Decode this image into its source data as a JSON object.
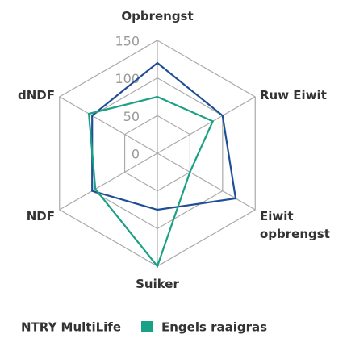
{
  "chart_data": {
    "type": "radar",
    "categories": [
      "Opbrengst",
      "Ruw Eiwit",
      "Eiwit opbrengst",
      "Suiker",
      "NDF",
      "dNDF"
    ],
    "series": [
      {
        "name": "NTRY MultiLife",
        "color": "#1f4e96",
        "values": [
          120,
          100,
          120,
          75,
          100,
          100
        ]
      },
      {
        "name": "Engels raaigras",
        "color": "#1aa085",
        "values": [
          75,
          85,
          50,
          150,
          95,
          105
        ]
      }
    ],
    "ylim": [
      0,
      150
    ],
    "yticks": [
      0,
      50,
      100,
      150
    ],
    "grid": true
  }
}
